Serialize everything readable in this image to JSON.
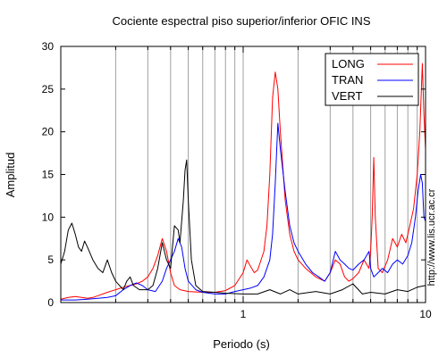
{
  "chart_data": {
    "type": "line",
    "title": "Cociente espectral piso superior/inferior  OFIC INS",
    "xlabel": "Periodo (s)",
    "ylabel": "Amplitud",
    "xscale": "log",
    "xlim": [
      0.1,
      10
    ],
    "ylim": [
      0,
      30
    ],
    "x_tick_labels": [
      "1",
      "10"
    ],
    "y_ticks": [
      0,
      5,
      10,
      15,
      20,
      25,
      30
    ],
    "grid": "vertical log gridlines",
    "legend_position": "top-right",
    "watermark": "http://www.lis.ucr.ac.cr",
    "series": [
      {
        "name": "LONG",
        "color": "#ff0000",
        "points": [
          [
            0.1,
            0.4
          ],
          [
            0.11,
            0.6
          ],
          [
            0.12,
            0.7
          ],
          [
            0.13,
            0.6
          ],
          [
            0.14,
            0.5
          ],
          [
            0.15,
            0.6
          ],
          [
            0.16,
            0.8
          ],
          [
            0.18,
            1.2
          ],
          [
            0.2,
            1.5
          ],
          [
            0.22,
            1.8
          ],
          [
            0.24,
            2.0
          ],
          [
            0.26,
            2.2
          ],
          [
            0.28,
            2.5
          ],
          [
            0.3,
            3.0
          ],
          [
            0.32,
            4.0
          ],
          [
            0.34,
            5.5
          ],
          [
            0.36,
            7.5
          ],
          [
            0.38,
            6.0
          ],
          [
            0.4,
            3.5
          ],
          [
            0.42,
            2.0
          ],
          [
            0.45,
            1.5
          ],
          [
            0.5,
            1.3
          ],
          [
            0.6,
            1.2
          ],
          [
            0.7,
            1.2
          ],
          [
            0.8,
            1.4
          ],
          [
            0.9,
            2.0
          ],
          [
            1.0,
            3.5
          ],
          [
            1.05,
            5.0
          ],
          [
            1.1,
            4.2
          ],
          [
            1.15,
            3.5
          ],
          [
            1.2,
            3.8
          ],
          [
            1.3,
            6.0
          ],
          [
            1.35,
            9.0
          ],
          [
            1.4,
            15.0
          ],
          [
            1.45,
            24.0
          ],
          [
            1.5,
            27.0
          ],
          [
            1.55,
            25.0
          ],
          [
            1.6,
            20.0
          ],
          [
            1.7,
            12.0
          ],
          [
            1.8,
            8.0
          ],
          [
            1.9,
            6.0
          ],
          [
            2.0,
            5.0
          ],
          [
            2.2,
            4.0
          ],
          [
            2.5,
            3.0
          ],
          [
            2.8,
            2.5
          ],
          [
            3.0,
            3.5
          ],
          [
            3.2,
            5.0
          ],
          [
            3.4,
            4.5
          ],
          [
            3.6,
            3.0
          ],
          [
            3.8,
            2.5
          ],
          [
            4.0,
            2.8
          ],
          [
            4.3,
            3.5
          ],
          [
            4.6,
            5.0
          ],
          [
            4.9,
            4.0
          ],
          [
            5.0,
            6.0
          ],
          [
            5.1,
            10.0
          ],
          [
            5.2,
            17.0
          ],
          [
            5.3,
            10.0
          ],
          [
            5.5,
            4.0
          ],
          [
            5.8,
            3.5
          ],
          [
            6.2,
            5.0
          ],
          [
            6.6,
            7.5
          ],
          [
            7.0,
            6.5
          ],
          [
            7.4,
            8.0
          ],
          [
            7.8,
            7.0
          ],
          [
            8.2,
            9.0
          ],
          [
            8.6,
            11.0
          ],
          [
            9.0,
            15.0
          ],
          [
            9.3,
            20.0
          ],
          [
            9.6,
            28.0
          ],
          [
            9.8,
            22.0
          ],
          [
            10.0,
            18.0
          ]
        ]
      },
      {
        "name": "TRAN",
        "color": "#0000ff",
        "points": [
          [
            0.1,
            0.3
          ],
          [
            0.12,
            0.3
          ],
          [
            0.14,
            0.4
          ],
          [
            0.16,
            0.5
          ],
          [
            0.18,
            0.6
          ],
          [
            0.2,
            0.8
          ],
          [
            0.22,
            1.5
          ],
          [
            0.24,
            2.0
          ],
          [
            0.26,
            2.3
          ],
          [
            0.28,
            2.0
          ],
          [
            0.3,
            1.5
          ],
          [
            0.33,
            1.3
          ],
          [
            0.36,
            2.5
          ],
          [
            0.38,
            4.0
          ],
          [
            0.4,
            5.0
          ],
          [
            0.42,
            6.0
          ],
          [
            0.44,
            7.5
          ],
          [
            0.46,
            6.5
          ],
          [
            0.48,
            4.0
          ],
          [
            0.5,
            2.5
          ],
          [
            0.55,
            1.5
          ],
          [
            0.6,
            1.2
          ],
          [
            0.7,
            1.0
          ],
          [
            0.8,
            1.0
          ],
          [
            0.9,
            1.3
          ],
          [
            1.0,
            1.5
          ],
          [
            1.1,
            1.7
          ],
          [
            1.2,
            2.0
          ],
          [
            1.3,
            3.0
          ],
          [
            1.4,
            5.0
          ],
          [
            1.45,
            8.0
          ],
          [
            1.5,
            14.0
          ],
          [
            1.55,
            21.0
          ],
          [
            1.6,
            18.0
          ],
          [
            1.7,
            13.0
          ],
          [
            1.8,
            9.0
          ],
          [
            1.9,
            7.0
          ],
          [
            2.0,
            6.0
          ],
          [
            2.2,
            4.5
          ],
          [
            2.4,
            3.5
          ],
          [
            2.6,
            3.0
          ],
          [
            2.8,
            2.5
          ],
          [
            3.0,
            3.5
          ],
          [
            3.2,
            6.0
          ],
          [
            3.4,
            5.0
          ],
          [
            3.6,
            4.5
          ],
          [
            3.8,
            4.0
          ],
          [
            4.0,
            3.8
          ],
          [
            4.3,
            4.5
          ],
          [
            4.6,
            5.0
          ],
          [
            4.9,
            6.0
          ],
          [
            5.0,
            4.0
          ],
          [
            5.2,
            3.0
          ],
          [
            5.5,
            3.5
          ],
          [
            5.8,
            4.0
          ],
          [
            6.2,
            3.5
          ],
          [
            6.6,
            4.5
          ],
          [
            7.0,
            5.0
          ],
          [
            7.5,
            4.5
          ],
          [
            8.0,
            5.5
          ],
          [
            8.4,
            7.0
          ],
          [
            8.8,
            10.0
          ],
          [
            9.1,
            13.0
          ],
          [
            9.4,
            15.0
          ],
          [
            9.6,
            14.0
          ],
          [
            9.8,
            10.0
          ],
          [
            10.0,
            9.5
          ]
        ]
      },
      {
        "name": "VERT",
        "color": "#000000",
        "points": [
          [
            0.1,
            4.5
          ],
          [
            0.105,
            6.0
          ],
          [
            0.11,
            8.5
          ],
          [
            0.115,
            9.3
          ],
          [
            0.12,
            8.0
          ],
          [
            0.125,
            6.5
          ],
          [
            0.13,
            6.0
          ],
          [
            0.135,
            7.2
          ],
          [
            0.14,
            6.5
          ],
          [
            0.15,
            5.0
          ],
          [
            0.16,
            4.0
          ],
          [
            0.17,
            3.5
          ],
          [
            0.18,
            5.0
          ],
          [
            0.19,
            3.5
          ],
          [
            0.2,
            2.5
          ],
          [
            0.21,
            2.0
          ],
          [
            0.22,
            1.5
          ],
          [
            0.23,
            2.5
          ],
          [
            0.24,
            3.0
          ],
          [
            0.25,
            2.0
          ],
          [
            0.27,
            1.5
          ],
          [
            0.3,
            1.5
          ],
          [
            0.32,
            2.0
          ],
          [
            0.34,
            4.0
          ],
          [
            0.36,
            7.0
          ],
          [
            0.38,
            5.0
          ],
          [
            0.4,
            4.0
          ],
          [
            0.42,
            9.0
          ],
          [
            0.44,
            8.5
          ],
          [
            0.45,
            7.0
          ],
          [
            0.47,
            12.0
          ],
          [
            0.48,
            15.5
          ],
          [
            0.49,
            16.7
          ],
          [
            0.5,
            12.0
          ],
          [
            0.52,
            5.0
          ],
          [
            0.55,
            2.0
          ],
          [
            0.6,
            1.3
          ],
          [
            0.7,
            1.2
          ],
          [
            0.8,
            1.1
          ],
          [
            1.0,
            1.0
          ],
          [
            1.2,
            1.0
          ],
          [
            1.4,
            1.5
          ],
          [
            1.6,
            1.0
          ],
          [
            1.8,
            1.5
          ],
          [
            2.0,
            1.0
          ],
          [
            2.5,
            1.3
          ],
          [
            3.0,
            1.0
          ],
          [
            3.5,
            1.5
          ],
          [
            4.0,
            2.2
          ],
          [
            4.5,
            1.0
          ],
          [
            5.0,
            1.2
          ],
          [
            6.0,
            1.0
          ],
          [
            7.0,
            1.5
          ],
          [
            8.0,
            1.3
          ],
          [
            9.0,
            1.8
          ],
          [
            10.0,
            2.0
          ]
        ]
      }
    ]
  }
}
